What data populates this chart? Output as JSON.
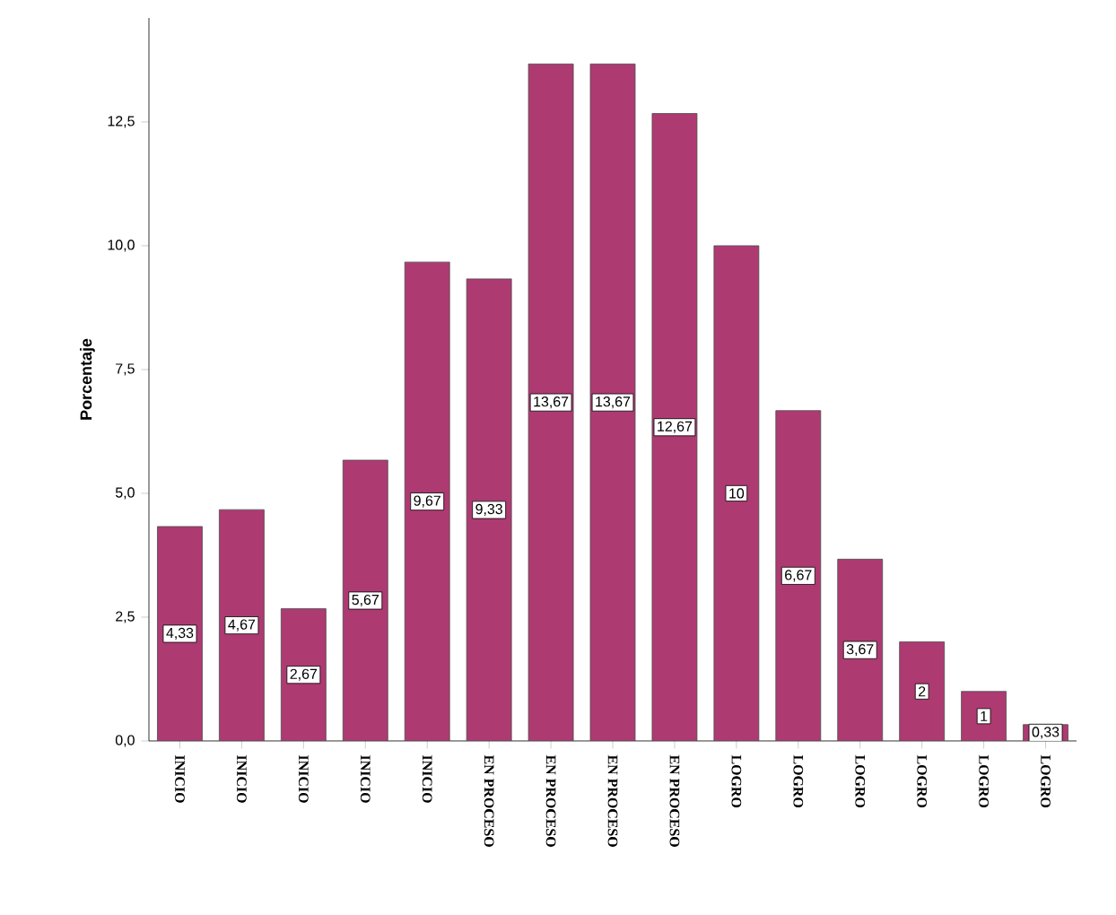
{
  "chart_data": {
    "type": "bar",
    "ylabel": "Porcentaje",
    "categories": [
      "INICIO",
      "INICIO",
      "INICIO",
      "INICIO",
      "INICIO",
      "EN PROCESO",
      "EN PROCESO",
      "EN PROCESO",
      "EN PROCESO",
      "LOGRO",
      "LOGRO",
      "LOGRO",
      "LOGRO",
      "LOGRO",
      "LOGRO"
    ],
    "values": [
      4.33,
      4.67,
      2.67,
      5.67,
      9.67,
      9.33,
      13.67,
      13.67,
      12.67,
      10,
      6.67,
      3.67,
      2,
      1,
      0.33
    ],
    "value_labels": [
      "4,33",
      "4,67",
      "2,67",
      "5,67",
      "9,67",
      "9,33",
      "13,67",
      "13,67",
      "12,67",
      "10",
      "6,67",
      "3,67",
      "2",
      "1",
      "0,33"
    ],
    "color": "#ae3a72",
    "ylim": [
      0,
      14.6
    ],
    "yticks": [
      {
        "value": 0,
        "label": "0,0"
      },
      {
        "value": 2.5,
        "label": "2,5"
      },
      {
        "value": 5,
        "label": "5,0"
      },
      {
        "value": 7.5,
        "label": "7,5"
      },
      {
        "value": 10,
        "label": "10,0"
      },
      {
        "value": 12.5,
        "label": "12,5"
      }
    ]
  }
}
